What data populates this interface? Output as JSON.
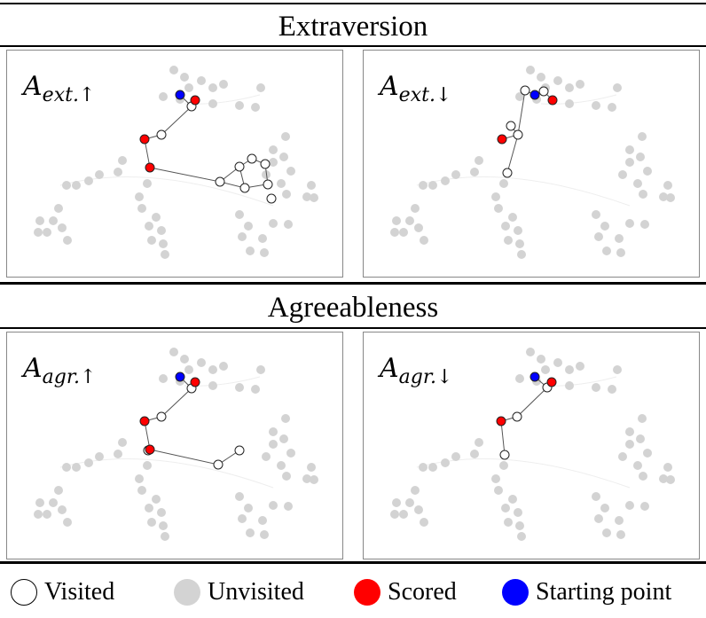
{
  "sections": [
    {
      "title": "Extraversion",
      "panels": [
        {
          "label_base": "A",
          "label_sub": "ext.↑",
          "variant": "large"
        },
        {
          "label_base": "A",
          "label_sub": "ext.↓",
          "variant": "small"
        }
      ]
    },
    {
      "title": "Agreeableness",
      "panels": [
        {
          "label_base": "A",
          "label_sub": "agr.↑",
          "variant": "mid"
        },
        {
          "label_base": "A",
          "label_sub": "agr.↓",
          "variant": "tiny"
        }
      ]
    }
  ],
  "legend": {
    "visited": "Visited",
    "unvisited": "Unvisited",
    "scored": "Scored",
    "start": "Starting point"
  },
  "colors": {
    "visited": "#ffffff",
    "unvisited": "#d3d3d3",
    "scored": "#ff0000",
    "start": "#0000ff"
  }
}
